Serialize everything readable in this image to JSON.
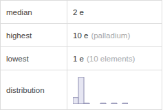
{
  "table": {
    "rows": [
      {
        "label": "median",
        "value": "2 e"
      },
      {
        "label": "highest",
        "value": "10 e",
        "note": "(palladium)"
      },
      {
        "label": "lowest",
        "value": "1 e",
        "note": "(10 elements)"
      },
      {
        "label": "distribution"
      }
    ]
  },
  "chart_data": {
    "type": "histogram",
    "bins": [
      0.5,
      1.5,
      2.5,
      3.5,
      4.5,
      5.5,
      6.5,
      7.5,
      8.5,
      9.5,
      10.5
    ],
    "values": [
      10,
      42,
      1,
      0,
      0,
      1,
      0,
      1,
      0,
      1
    ],
    "color": "#e6e6f2",
    "xlim": [
      0.5,
      10.5
    ],
    "ylim": [
      0,
      42
    ],
    "tick_labels": false,
    "grid": false
  }
}
